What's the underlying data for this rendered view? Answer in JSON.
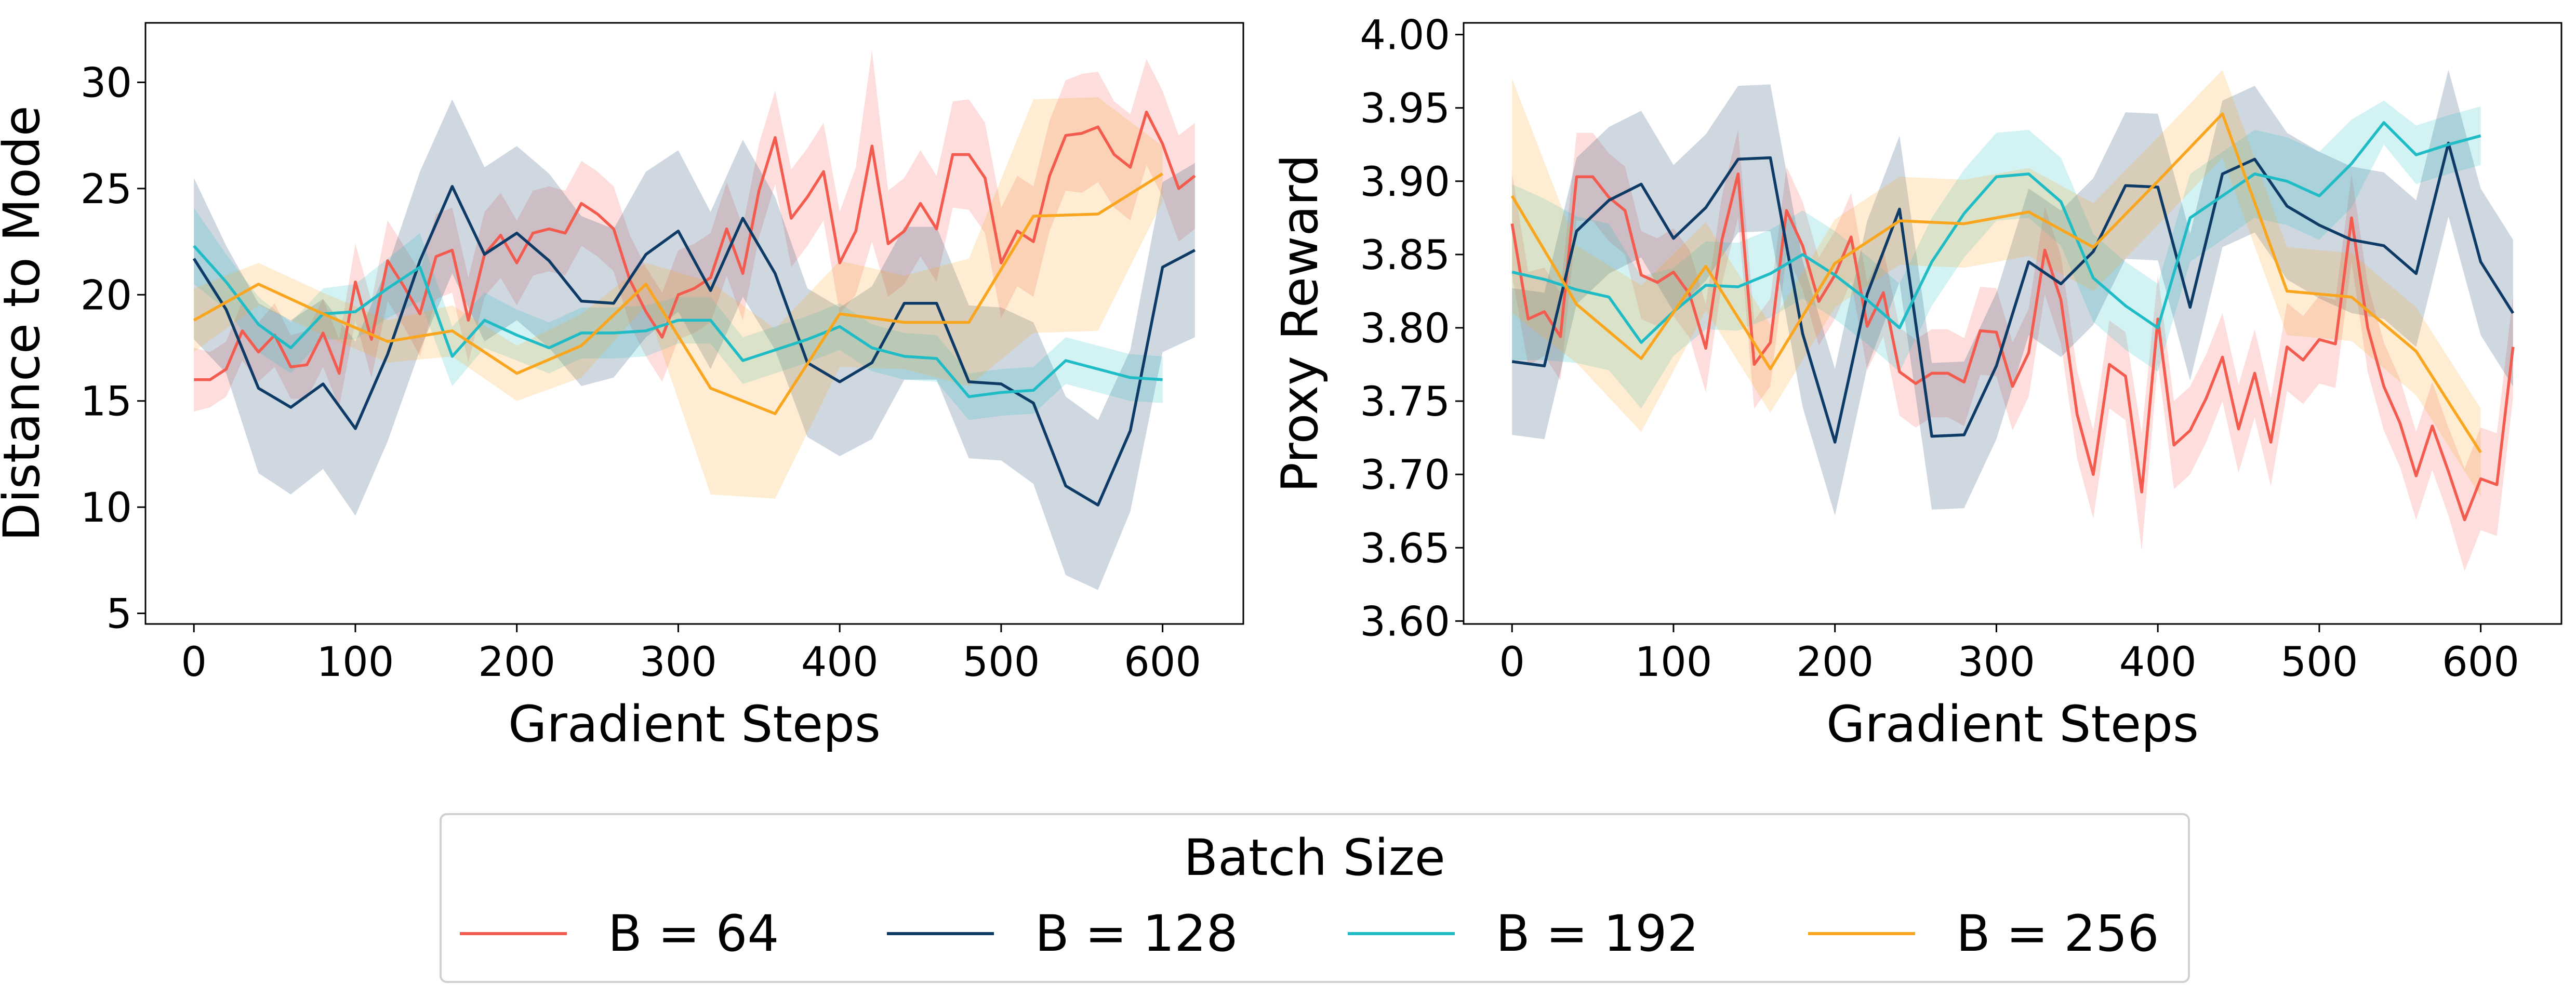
{
  "legend": {
    "title": "Batch Size",
    "entries": [
      {
        "label": "B = 64",
        "color": "#f35b4f"
      },
      {
        "label": "B = 128",
        "color": "#0d3b66"
      },
      {
        "label": "B = 192",
        "color": "#1fbcc6"
      },
      {
        "label": "B = 256",
        "color": "#f9a51e"
      }
    ]
  },
  "chart_data": [
    {
      "type": "line",
      "xlabel": "Gradient Steps",
      "ylabel": "Distance to Mode",
      "xlim": [
        -30,
        650
      ],
      "ylim": [
        4.5,
        32.8
      ],
      "xticks": [
        0,
        100,
        200,
        300,
        400,
        500,
        600
      ],
      "yticks": [
        5,
        10,
        15,
        20,
        25,
        30
      ],
      "tick_format": 0,
      "grid": false,
      "series": [
        {
          "name": "B = 64",
          "color": "#f35b4f",
          "x": [
            0,
            10,
            20,
            30,
            40,
            50,
            60,
            70,
            80,
            90,
            100,
            110,
            120,
            130,
            140,
            150,
            160,
            170,
            180,
            190,
            200,
            210,
            220,
            230,
            240,
            250,
            260,
            270,
            280,
            290,
            300,
            310,
            320,
            330,
            340,
            350,
            360,
            370,
            380,
            390,
            400,
            410,
            420,
            430,
            440,
            450,
            460,
            470,
            480,
            490,
            500,
            510,
            520,
            530,
            540,
            550,
            560,
            570,
            580,
            590,
            600,
            610,
            620
          ],
          "y": [
            16.0,
            16.0,
            16.5,
            18.3,
            17.3,
            18.1,
            16.6,
            16.7,
            18.2,
            16.3,
            20.6,
            17.9,
            21.6,
            20.4,
            19.1,
            21.8,
            22.1,
            18.8,
            21.9,
            22.8,
            21.5,
            22.9,
            23.1,
            22.9,
            24.3,
            23.8,
            23.1,
            20.7,
            19.2,
            18.0,
            20.0,
            20.3,
            20.8,
            23.1,
            21.0,
            24.9,
            27.4,
            23.6,
            24.6,
            25.8,
            21.5,
            23.0,
            27.0,
            22.4,
            23.0,
            24.3,
            23.1,
            26.6,
            26.6,
            25.5,
            21.5,
            23.0,
            22.5,
            25.6,
            27.5,
            27.6,
            27.9,
            26.6,
            26.0,
            28.6,
            27.1,
            25.0,
            25.6
          ],
          "band": [
            1.5,
            1.3,
            1.3,
            1.4,
            1.4,
            1.5,
            1.5,
            1.6,
            1.6,
            1.6,
            1.8,
            1.8,
            1.9,
            1.9,
            2.0,
            2.0,
            2.0,
            2.0,
            2.0,
            2.0,
            2.0,
            2.0,
            2.0,
            2.0,
            2.0,
            2.0,
            2.0,
            2.1,
            2.1,
            2.1,
            2.1,
            2.1,
            2.1,
            2.2,
            2.2,
            2.2,
            2.2,
            2.3,
            2.3,
            2.3,
            2.4,
            3.0,
            4.5,
            2.5,
            2.5,
            2.5,
            2.5,
            2.5,
            2.6,
            2.6,
            2.6,
            2.6,
            2.6,
            2.6,
            2.6,
            2.8,
            2.6,
            2.5,
            2.5,
            2.5,
            2.5,
            2.5,
            2.5
          ]
        },
        {
          "name": "B = 128",
          "color": "#0d3b66",
          "x": [
            0,
            20,
            40,
            60,
            80,
            100,
            120,
            140,
            160,
            180,
            200,
            220,
            240,
            260,
            280,
            300,
            320,
            340,
            360,
            380,
            400,
            420,
            440,
            460,
            480,
            500,
            520,
            540,
            560,
            580,
            600,
            620
          ],
          "y": [
            21.7,
            19.3,
            15.6,
            14.7,
            15.8,
            13.7,
            17.2,
            21.6,
            25.1,
            21.9,
            22.9,
            21.6,
            19.7,
            19.6,
            21.9,
            23.0,
            20.2,
            23.6,
            21.0,
            16.8,
            15.9,
            16.8,
            19.6,
            19.6,
            15.9,
            15.8,
            14.9,
            11.0,
            10.1,
            13.6,
            21.3,
            22.1
          ],
          "band": [
            3.8,
            3.0,
            4.0,
            4.1,
            4.0,
            4.1,
            4.1,
            4.2,
            4.1,
            4.1,
            4.1,
            4.1,
            4.0,
            3.5,
            3.9,
            3.8,
            3.7,
            3.7,
            3.6,
            3.5,
            3.5,
            3.6,
            3.6,
            3.6,
            3.6,
            3.6,
            3.8,
            4.2,
            4.0,
            3.8,
            4.0,
            4.1
          ]
        },
        {
          "name": "B = 192",
          "color": "#1fbcc6",
          "x": [
            0,
            20,
            40,
            60,
            80,
            100,
            120,
            140,
            160,
            180,
            200,
            220,
            240,
            260,
            280,
            300,
            320,
            340,
            360,
            380,
            400,
            420,
            440,
            460,
            480,
            500,
            520,
            540,
            560,
            580,
            600
          ],
          "y": [
            22.3,
            20.6,
            18.6,
            17.5,
            19.1,
            19.2,
            20.3,
            21.3,
            17.1,
            18.8,
            18.1,
            17.5,
            18.2,
            18.2,
            18.3,
            18.8,
            18.8,
            16.9,
            17.4,
            17.9,
            18.5,
            17.5,
            17.1,
            17.0,
            15.2,
            15.4,
            15.5,
            16.9,
            16.5,
            16.1,
            16.0
          ],
          "band": [
            1.8,
            1.3,
            1.3,
            1.2,
            1.2,
            1.3,
            1.4,
            1.6,
            1.4,
            1.3,
            1.2,
            1.2,
            1.2,
            1.2,
            1.2,
            1.1,
            1.1,
            1.1,
            1.1,
            1.1,
            1.1,
            1.1,
            1.1,
            1.1,
            1.1,
            1.1,
            1.1,
            1.1,
            1.1,
            1.1,
            1.1
          ]
        },
        {
          "name": "B = 256",
          "color": "#f9a51e",
          "x": [
            0,
            40,
            80,
            120,
            160,
            200,
            240,
            280,
            320,
            360,
            400,
            440,
            480,
            520,
            560,
            600
          ],
          "y": [
            18.8,
            20.5,
            19.1,
            17.8,
            18.3,
            16.3,
            17.6,
            20.5,
            15.6,
            14.4,
            19.1,
            18.7,
            18.7,
            23.7,
            23.8,
            25.7
          ],
          "band": [
            1.5,
            1.0,
            1.0,
            1.0,
            1.2,
            1.3,
            1.5,
            1.0,
            5.0,
            4.0,
            2.5,
            2.2,
            3.0,
            5.5,
            5.5,
            1.3
          ]
        }
      ]
    },
    {
      "type": "line",
      "xlabel": "Gradient Steps",
      "ylabel": "Proxy Reward",
      "xlim": [
        -30,
        650
      ],
      "ylim": [
        3.598,
        4.008
      ],
      "xticks": [
        0,
        100,
        200,
        300,
        400,
        500,
        600
      ],
      "yticks": [
        3.6,
        3.65,
        3.7,
        3.75,
        3.8,
        3.85,
        3.9,
        3.95,
        4.0
      ],
      "tick_format": 2,
      "grid": false,
      "series": [
        {
          "name": "B = 64",
          "color": "#f35b4f",
          "x": [
            0,
            10,
            20,
            30,
            40,
            50,
            60,
            70,
            80,
            90,
            100,
            110,
            120,
            130,
            140,
            150,
            160,
            170,
            180,
            190,
            200,
            210,
            220,
            230,
            240,
            250,
            260,
            270,
            280,
            290,
            300,
            310,
            320,
            330,
            340,
            350,
            360,
            370,
            380,
            390,
            400,
            410,
            420,
            430,
            440,
            450,
            460,
            470,
            480,
            490,
            500,
            510,
            520,
            530,
            540,
            550,
            560,
            570,
            580,
            590,
            600,
            610,
            620
          ],
          "y": [
            3.871,
            3.806,
            3.811,
            3.794,
            3.903,
            3.903,
            3.889,
            3.88,
            3.836,
            3.831,
            3.838,
            3.823,
            3.786,
            3.86,
            3.905,
            3.775,
            3.79,
            3.88,
            3.856,
            3.818,
            3.836,
            3.862,
            3.801,
            3.824,
            3.77,
            3.762,
            3.769,
            3.769,
            3.763,
            3.798,
            3.797,
            3.76,
            3.783,
            3.853,
            3.819,
            3.741,
            3.7,
            3.775,
            3.767,
            3.688,
            3.806,
            3.72,
            3.73,
            3.752,
            3.78,
            3.731,
            3.769,
            3.722,
            3.787,
            3.778,
            3.792,
            3.789,
            3.875,
            3.8,
            3.76,
            3.735,
            3.699,
            3.733,
            3.702,
            3.669,
            3.697,
            3.693,
            3.787
          ],
          "band": [
            0.035,
            0.032,
            0.03,
            0.03,
            0.03,
            0.03,
            0.03,
            0.03,
            0.03,
            0.03,
            0.03,
            0.03,
            0.03,
            0.03,
            0.03,
            0.03,
            0.03,
            0.03,
            0.03,
            0.03,
            0.03,
            0.03,
            0.03,
            0.03,
            0.03,
            0.03,
            0.03,
            0.03,
            0.03,
            0.03,
            0.03,
            0.03,
            0.03,
            0.03,
            0.03,
            0.03,
            0.03,
            0.03,
            0.03,
            0.04,
            0.03,
            0.03,
            0.03,
            0.03,
            0.03,
            0.03,
            0.03,
            0.03,
            0.03,
            0.03,
            0.03,
            0.03,
            0.03,
            0.03,
            0.03,
            0.03,
            0.03,
            0.03,
            0.03,
            0.035,
            0.035,
            0.035,
            0.035
          ]
        },
        {
          "name": "B = 128",
          "color": "#0d3b66",
          "x": [
            0,
            20,
            40,
            60,
            80,
            100,
            120,
            140,
            160,
            180,
            200,
            220,
            240,
            260,
            280,
            300,
            320,
            340,
            360,
            380,
            400,
            420,
            440,
            460,
            480,
            500,
            520,
            540,
            560,
            580,
            600,
            620
          ],
          "y": [
            3.777,
            3.774,
            3.866,
            3.887,
            3.898,
            3.861,
            3.882,
            3.915,
            3.916,
            3.796,
            3.722,
            3.823,
            3.881,
            3.726,
            3.727,
            3.774,
            3.845,
            3.83,
            3.852,
            3.897,
            3.896,
            3.814,
            3.905,
            3.915,
            3.883,
            3.87,
            3.86,
            3.856,
            3.837,
            3.926,
            3.845,
            3.81
          ],
          "band": [
            0.05,
            0.05,
            0.05,
            0.05,
            0.05,
            0.05,
            0.05,
            0.05,
            0.05,
            0.05,
            0.05,
            0.05,
            0.05,
            0.05,
            0.05,
            0.05,
            0.05,
            0.05,
            0.05,
            0.05,
            0.05,
            0.05,
            0.05,
            0.05,
            0.05,
            0.05,
            0.05,
            0.05,
            0.05,
            0.05,
            0.05,
            0.05
          ]
        },
        {
          "name": "B = 192",
          "color": "#1fbcc6",
          "x": [
            0,
            20,
            40,
            60,
            80,
            100,
            120,
            140,
            160,
            180,
            200,
            220,
            240,
            260,
            280,
            300,
            320,
            340,
            360,
            380,
            400,
            420,
            440,
            460,
            480,
            500,
            520,
            540,
            560,
            580,
            600
          ],
          "y": [
            3.838,
            3.833,
            3.826,
            3.821,
            3.79,
            3.811,
            3.829,
            3.828,
            3.837,
            3.85,
            3.836,
            3.819,
            3.8,
            3.845,
            3.878,
            3.903,
            3.905,
            3.886,
            3.834,
            3.815,
            3.8,
            3.875,
            3.89,
            3.905,
            3.9,
            3.89,
            3.912,
            3.94,
            3.918,
            3.925,
            3.931
          ],
          "band": [
            0.06,
            0.055,
            0.05,
            0.05,
            0.045,
            0.03,
            0.03,
            0.03,
            0.03,
            0.03,
            0.03,
            0.03,
            0.03,
            0.03,
            0.03,
            0.03,
            0.03,
            0.03,
            0.03,
            0.03,
            0.03,
            0.03,
            0.03,
            0.03,
            0.03,
            0.03,
            0.03,
            0.015,
            0.02,
            0.02,
            0.02
          ]
        },
        {
          "name": "B = 256",
          "color": "#f9a51e",
          "x": [
            0,
            40,
            80,
            120,
            160,
            200,
            240,
            280,
            320,
            360,
            400,
            440,
            480,
            520,
            560,
            600
          ],
          "y": [
            3.89,
            3.816,
            3.779,
            3.842,
            3.772,
            3.844,
            3.873,
            3.871,
            3.879,
            3.855,
            3.9,
            3.946,
            3.825,
            3.821,
            3.784,
            3.715
          ],
          "band": [
            0.08,
            0.04,
            0.05,
            0.03,
            0.03,
            0.03,
            0.03,
            0.03,
            0.03,
            0.03,
            0.03,
            0.03,
            0.03,
            0.03,
            0.03,
            0.03
          ]
        }
      ]
    }
  ]
}
